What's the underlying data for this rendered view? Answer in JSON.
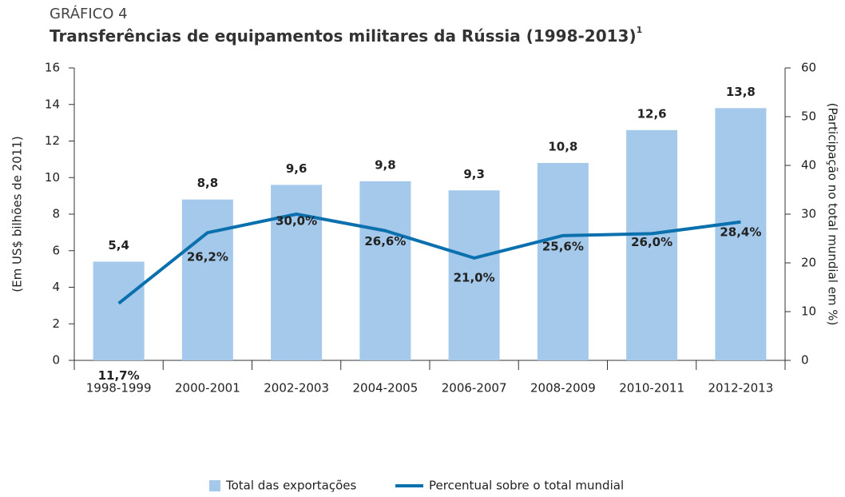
{
  "chart_data": {
    "type": "bar",
    "label": "GRÁFICO 4",
    "title": "Transferências de equipamentos militares da Rússia (1998-2013)",
    "title_footnote": "1",
    "ylabel": "(Em US$ bilhões de 2011)",
    "y2label": "(Participação no total mundial em %)",
    "categories": [
      "1998-1999",
      "2000-2001",
      "2002-2003",
      "2004-2005",
      "2006-2007",
      "2008-2009",
      "2010-2011",
      "2012-2013"
    ],
    "series": [
      {
        "name": "Total das exportações",
        "type": "bar",
        "color": "#a4c9ea",
        "values": [
          5.4,
          8.8,
          9.6,
          9.8,
          9.3,
          10.8,
          12.6,
          13.8
        ],
        "value_labels": [
          "5,4",
          "8,8",
          "9,6",
          "9,8",
          "9,3",
          "10,8",
          "12,6",
          "13,8"
        ]
      },
      {
        "name": "Percentual sobre o total mundial",
        "type": "line",
        "axis": "y2",
        "color": "#0a70ae",
        "values": [
          11.7,
          26.2,
          30.0,
          26.6,
          21.0,
          25.6,
          26.0,
          28.4
        ],
        "value_labels": [
          "11,7%",
          "26,2%",
          "30,0%",
          "26,6%",
          "21,0%",
          "25,6%",
          "26,0%",
          "28,4%"
        ]
      }
    ],
    "ylim": [
      0,
      16
    ],
    "yticks": [
      0,
      2,
      4,
      6,
      8,
      10,
      12,
      14,
      16
    ],
    "y2lim": [
      0,
      60
    ],
    "y2ticks": [
      0,
      10,
      20,
      30,
      40,
      50,
      60
    ],
    "grid": false,
    "legend": "bottom"
  }
}
